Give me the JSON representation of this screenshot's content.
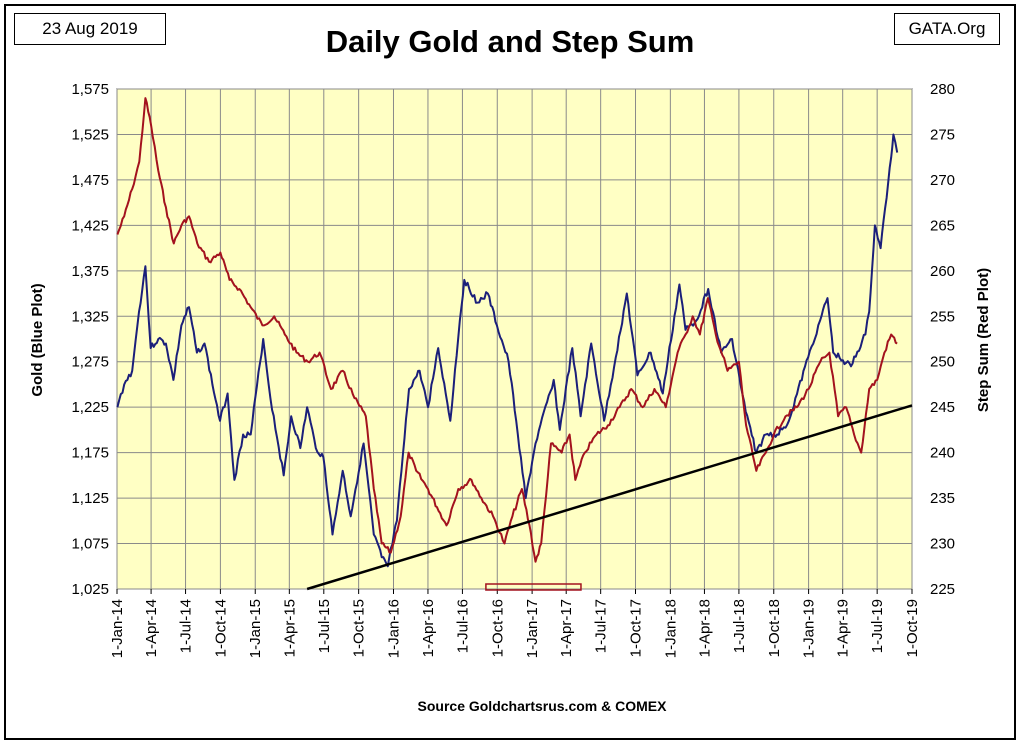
{
  "header": {
    "date": "23 Aug 2019",
    "source_tag": "GATA.Org",
    "title": "Daily Gold and Step Sum"
  },
  "footer": {
    "source": "Source Goldchartsrus.com & COMEX"
  },
  "chart_data": {
    "type": "line",
    "title": "Daily Gold and Step Sum",
    "ylabel_left": "Gold   (Blue Plot)",
    "ylabel_right": "Step Sum   (Red Plot)",
    "xlabel": "",
    "x_tick_labels": [
      "1-Jan-14",
      "1-Apr-14",
      "1-Jul-14",
      "1-Oct-14",
      "1-Jan-15",
      "1-Apr-15",
      "1-Jul-15",
      "1-Oct-15",
      "1-Jan-16",
      "1-Apr-16",
      "1-Jul-16",
      "1-Oct-16",
      "1-Jan-17",
      "1-Apr-17",
      "1-Jul-17",
      "1-Oct-17",
      "1-Jan-18",
      "1-Apr-18",
      "1-Jul-18",
      "1-Oct-18",
      "1-Jan-19",
      "1-Apr-19",
      "1-Jul-19",
      "1-Oct-19"
    ],
    "x_range": [
      "2014-01-01",
      "2019-10-01"
    ],
    "ylim_left": [
      1025,
      1575
    ],
    "yticks_left": [
      "1,025",
      "1,075",
      "1,125",
      "1,175",
      "1,225",
      "1,275",
      "1,325",
      "1,375",
      "1,425",
      "1,475",
      "1,525",
      "1,575"
    ],
    "ylim_right": [
      225,
      280
    ],
    "yticks_right": [
      "225",
      "230",
      "235",
      "240",
      "245",
      "250",
      "255",
      "260",
      "265",
      "270",
      "275",
      "280"
    ],
    "grid": true,
    "background": "#ffffc4",
    "series": [
      {
        "name": "Gold",
        "axis": "left",
        "color": "#1b1f7a",
        "points": [
          [
            "2014-01-02",
            1225
          ],
          [
            "2014-01-20",
            1250
          ],
          [
            "2014-02-10",
            1265
          ],
          [
            "2014-02-28",
            1330
          ],
          [
            "2014-03-17",
            1380
          ],
          [
            "2014-03-31",
            1290
          ],
          [
            "2014-04-20",
            1300
          ],
          [
            "2014-05-10",
            1295
          ],
          [
            "2014-05-30",
            1255
          ],
          [
            "2014-06-20",
            1315
          ],
          [
            "2014-07-10",
            1335
          ],
          [
            "2014-07-31",
            1285
          ],
          [
            "2014-08-20",
            1295
          ],
          [
            "2014-09-10",
            1250
          ],
          [
            "2014-09-30",
            1210
          ],
          [
            "2014-10-20",
            1240
          ],
          [
            "2014-11-07",
            1145
          ],
          [
            "2014-11-30",
            1195
          ],
          [
            "2014-12-20",
            1195
          ],
          [
            "2015-01-22",
            1300
          ],
          [
            "2015-02-10",
            1235
          ],
          [
            "2015-03-17",
            1150
          ],
          [
            "2015-04-06",
            1215
          ],
          [
            "2015-04-30",
            1180
          ],
          [
            "2015-05-18",
            1225
          ],
          [
            "2015-06-10",
            1180
          ],
          [
            "2015-06-30",
            1170
          ],
          [
            "2015-07-24",
            1085
          ],
          [
            "2015-08-20",
            1155
          ],
          [
            "2015-09-10",
            1105
          ],
          [
            "2015-10-14",
            1185
          ],
          [
            "2015-11-10",
            1085
          ],
          [
            "2015-12-01",
            1060
          ],
          [
            "2015-12-17",
            1050
          ],
          [
            "2016-01-10",
            1100
          ],
          [
            "2016-02-11",
            1245
          ],
          [
            "2016-03-10",
            1265
          ],
          [
            "2016-04-01",
            1225
          ],
          [
            "2016-04-28",
            1290
          ],
          [
            "2016-05-30",
            1210
          ],
          [
            "2016-06-24",
            1320
          ],
          [
            "2016-07-06",
            1365
          ],
          [
            "2016-08-10",
            1340
          ],
          [
            "2016-09-06",
            1350
          ],
          [
            "2016-09-30",
            1315
          ],
          [
            "2016-10-31",
            1275
          ],
          [
            "2016-11-20",
            1210
          ],
          [
            "2016-12-15",
            1125
          ],
          [
            "2017-01-10",
            1185
          ],
          [
            "2017-02-27",
            1255
          ],
          [
            "2017-03-15",
            1200
          ],
          [
            "2017-04-17",
            1290
          ],
          [
            "2017-05-09",
            1215
          ],
          [
            "2017-06-06",
            1295
          ],
          [
            "2017-07-10",
            1210
          ],
          [
            "2017-08-10",
            1280
          ],
          [
            "2017-09-08",
            1350
          ],
          [
            "2017-10-06",
            1260
          ],
          [
            "2017-11-10",
            1285
          ],
          [
            "2017-12-12",
            1240
          ],
          [
            "2018-01-25",
            1360
          ],
          [
            "2018-02-10",
            1310
          ],
          [
            "2018-03-10",
            1320
          ],
          [
            "2018-04-11",
            1355
          ],
          [
            "2018-05-15",
            1285
          ],
          [
            "2018-06-13",
            1300
          ],
          [
            "2018-07-19",
            1220
          ],
          [
            "2018-08-16",
            1175
          ],
          [
            "2018-09-10",
            1195
          ],
          [
            "2018-10-10",
            1195
          ],
          [
            "2018-11-10",
            1210
          ],
          [
            "2018-12-31",
            1280
          ],
          [
            "2019-01-31",
            1320
          ],
          [
            "2019-02-20",
            1345
          ],
          [
            "2019-03-07",
            1285
          ],
          [
            "2019-04-23",
            1270
          ],
          [
            "2019-05-31",
            1305
          ],
          [
            "2019-06-10",
            1330
          ],
          [
            "2019-06-25",
            1425
          ],
          [
            "2019-07-10",
            1400
          ],
          [
            "2019-08-07",
            1500
          ],
          [
            "2019-08-13",
            1525
          ],
          [
            "2019-08-23",
            1505
          ]
        ]
      },
      {
        "name": "Step Sum",
        "axis": "right",
        "color": "#a3121e",
        "points": [
          [
            "2014-01-02",
            264
          ],
          [
            "2014-01-20",
            266
          ],
          [
            "2014-02-10",
            269
          ],
          [
            "2014-03-01",
            272
          ],
          [
            "2014-03-17",
            279
          ],
          [
            "2014-04-01",
            276
          ],
          [
            "2014-04-20",
            271
          ],
          [
            "2014-05-10",
            267
          ],
          [
            "2014-05-31",
            263
          ],
          [
            "2014-06-20",
            265
          ],
          [
            "2014-07-10",
            266
          ],
          [
            "2014-08-01",
            263
          ],
          [
            "2014-09-01",
            261
          ],
          [
            "2014-10-01",
            262
          ],
          [
            "2014-10-25",
            259
          ],
          [
            "2014-11-20",
            258
          ],
          [
            "2014-12-20",
            256
          ],
          [
            "2015-01-20",
            254
          ],
          [
            "2015-02-20",
            255
          ],
          [
            "2015-03-20",
            253
          ],
          [
            "2015-04-20",
            251
          ],
          [
            "2015-05-20",
            250
          ],
          [
            "2015-06-20",
            251
          ],
          [
            "2015-07-20",
            247
          ],
          [
            "2015-08-20",
            249
          ],
          [
            "2015-09-20",
            246
          ],
          [
            "2015-10-20",
            244
          ],
          [
            "2015-11-10",
            236
          ],
          [
            "2015-12-01",
            230
          ],
          [
            "2015-12-25",
            229
          ],
          [
            "2016-01-20",
            233
          ],
          [
            "2016-02-10",
            240
          ],
          [
            "2016-03-01",
            238
          ],
          [
            "2016-04-01",
            236
          ],
          [
            "2016-04-25",
            234
          ],
          [
            "2016-05-20",
            232
          ],
          [
            "2016-06-20",
            236
          ],
          [
            "2016-07-25",
            237
          ],
          [
            "2016-08-20",
            235
          ],
          [
            "2016-09-20",
            233
          ],
          [
            "2016-10-20",
            230
          ],
          [
            "2016-11-10",
            233
          ],
          [
            "2016-12-05",
            236
          ],
          [
            "2016-12-25",
            232
          ],
          [
            "2017-01-10",
            228
          ],
          [
            "2017-01-25",
            230
          ],
          [
            "2017-02-20",
            241
          ],
          [
            "2017-03-20",
            240
          ],
          [
            "2017-04-10",
            242
          ],
          [
            "2017-04-25",
            237
          ],
          [
            "2017-05-20",
            240
          ],
          [
            "2017-06-20",
            242
          ],
          [
            "2017-07-20",
            243
          ],
          [
            "2017-08-20",
            245
          ],
          [
            "2017-09-20",
            247
          ],
          [
            "2017-10-20",
            245
          ],
          [
            "2017-11-20",
            247
          ],
          [
            "2017-12-20",
            245
          ],
          [
            "2018-01-20",
            251
          ],
          [
            "2018-02-10",
            253
          ],
          [
            "2018-03-01",
            255
          ],
          [
            "2018-03-20",
            253
          ],
          [
            "2018-04-10",
            257
          ],
          [
            "2018-05-01",
            253
          ],
          [
            "2018-06-01",
            249
          ],
          [
            "2018-07-01",
            250
          ],
          [
            "2018-07-20",
            243
          ],
          [
            "2018-08-16",
            238
          ],
          [
            "2018-09-10",
            240
          ],
          [
            "2018-10-01",
            242
          ],
          [
            "2018-11-01",
            244
          ],
          [
            "2018-12-01",
            245
          ],
          [
            "2019-01-01",
            247
          ],
          [
            "2019-02-01",
            250
          ],
          [
            "2019-02-25",
            251
          ],
          [
            "2019-03-20",
            244
          ],
          [
            "2019-04-10",
            245
          ],
          [
            "2019-05-01",
            242
          ],
          [
            "2019-05-20",
            240
          ],
          [
            "2019-06-10",
            247
          ],
          [
            "2019-07-01",
            248
          ],
          [
            "2019-07-20",
            251
          ],
          [
            "2019-08-07",
            253
          ],
          [
            "2019-08-23",
            252
          ]
        ]
      },
      {
        "name": "",
        "axis": "left",
        "color": "#000000",
        "kind": "trendline",
        "points": [
          [
            "2015-05-18",
            1025
          ],
          [
            "2019-10-01",
            1227
          ]
        ]
      }
    ],
    "annotations": [
      {
        "kind": "rectangle",
        "color": "#a3121e",
        "x_range": [
          "2016-09-01",
          "2017-05-10"
        ],
        "y_range": [
          1025,
          1030
        ]
      }
    ]
  }
}
